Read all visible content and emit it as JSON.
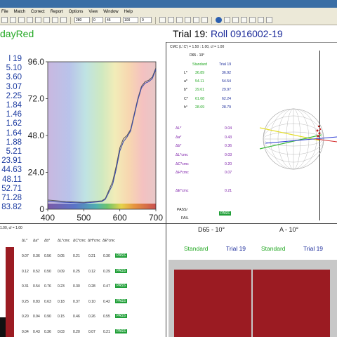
{
  "menu": [
    "File",
    "Match",
    "Correct",
    "Report",
    "Options",
    "View",
    "Window",
    "Help"
  ],
  "toolbar": {
    "field1": "280",
    "field2": "0",
    "field3": "45",
    "field4": "100",
    "field5": "0"
  },
  "header": {
    "standard_name": "dayRed",
    "trial_label": "Trial 19:",
    "trial_name": "Roll 0916002-19"
  },
  "left_values": [
    "l 19",
    "5.10",
    "3.60",
    "3.07",
    "2.25",
    "1.84",
    "1.46",
    "1.62",
    "1.64",
    "1.88",
    "5.21",
    "23.91",
    "44.63",
    "48.11",
    "52.71",
    "71.28",
    "83.82"
  ],
  "chart_data": {
    "type": "line",
    "xlim": [
      400,
      700
    ],
    "ylim": [
      0,
      96
    ],
    "xticks": [
      "400",
      "500",
      "600",
      "700"
    ],
    "yticks": [
      "0",
      "24.0",
      "48.0",
      "72.0",
      "96.0"
    ],
    "series": [
      {
        "x": [
          400,
          450,
          500,
          550,
          560,
          580,
          590,
          600,
          610,
          620,
          630,
          640,
          650,
          660,
          670,
          680,
          690,
          700
        ],
        "values": [
          6,
          5,
          4.5,
          5.5,
          7,
          18,
          28,
          40,
          46,
          48,
          52,
          62,
          72,
          80,
          83,
          84,
          86,
          92
        ]
      },
      {
        "x": [
          400,
          450,
          500,
          550,
          560,
          580,
          590,
          600,
          610,
          620,
          630,
          640,
          650,
          660,
          670,
          680,
          690,
          700
        ],
        "values": [
          5,
          4.5,
          4,
          5,
          6.5,
          16,
          26,
          38,
          44,
          47,
          51,
          61,
          71,
          79,
          82,
          83,
          85,
          91
        ]
      }
    ]
  },
  "cmc_header": "CMC (L':C') = 1.50 : 1.00, cf = 1.00",
  "d65_label": "D65 - 10°",
  "col_standard": "Standard",
  "col_trial": "Trial 19",
  "lab_rows": [
    {
      "k": "L*",
      "s": "36.89",
      "t": "36.92"
    },
    {
      "k": "a*",
      "s": "54.11",
      "t": "54.54"
    },
    {
      "k": "b*",
      "s": "29.61",
      "t": "29.97"
    },
    {
      "k": "C*",
      "s": "61.68",
      "t": "62.24"
    },
    {
      "k": "h°",
      "s": "28.69",
      "t": "28.79"
    }
  ],
  "delta_rows": [
    {
      "k": "ΔL*",
      "v": "0.04"
    },
    {
      "k": "Δa*",
      "v": "0.43"
    },
    {
      "k": "Δb*",
      "v": "0.36"
    },
    {
      "k": "ΔL*cmc",
      "v": "0.03"
    },
    {
      "k": "ΔC*cmc",
      "v": "0.20"
    },
    {
      "k": "ΔH*cmc",
      "v": "0.07"
    },
    {
      "k": "ΔE*cmc",
      "v": "0.21"
    }
  ],
  "pass_label": "PASS/",
  "fail_label": "FAIL",
  "pass_badge": "PASS",
  "bottom_left_header": "1.00, cf = 1.00",
  "bottom_d65": "D65 - 10°",
  "bottom_a10": "A - 10°",
  "bottom_cols": [
    "Standard",
    "Trial 19",
    "Standard",
    "Trial 19"
  ],
  "dtable_header": [
    "ΔL*",
    "Δa*",
    "Δb*",
    "ΔL*cmc",
    "ΔC*cmc",
    "ΔH*cmc",
    "ΔE*cmc"
  ],
  "dtable_rows": [
    [
      "0.07",
      "0.36",
      "0.56",
      "0.05",
      "0.21",
      "0.21",
      "0.30"
    ],
    [
      "0.12",
      "0.52",
      "0.50",
      "0.09",
      "0.25",
      "0.12",
      "0.29"
    ],
    [
      "0.31",
      "0.54",
      "0.76",
      "0.23",
      "0.30",
      "0.28",
      "0.47"
    ],
    [
      "0.25",
      "0.83",
      "0.63",
      "0.18",
      "0.37",
      "0.10",
      "0.42"
    ],
    [
      "0.20",
      "0.94",
      "0.90",
      "0.15",
      "0.46",
      "0.26",
      "0.55"
    ],
    [
      "0.04",
      "0.43",
      "0.36",
      "0.03",
      "0.20",
      "0.07",
      "0.21"
    ]
  ]
}
